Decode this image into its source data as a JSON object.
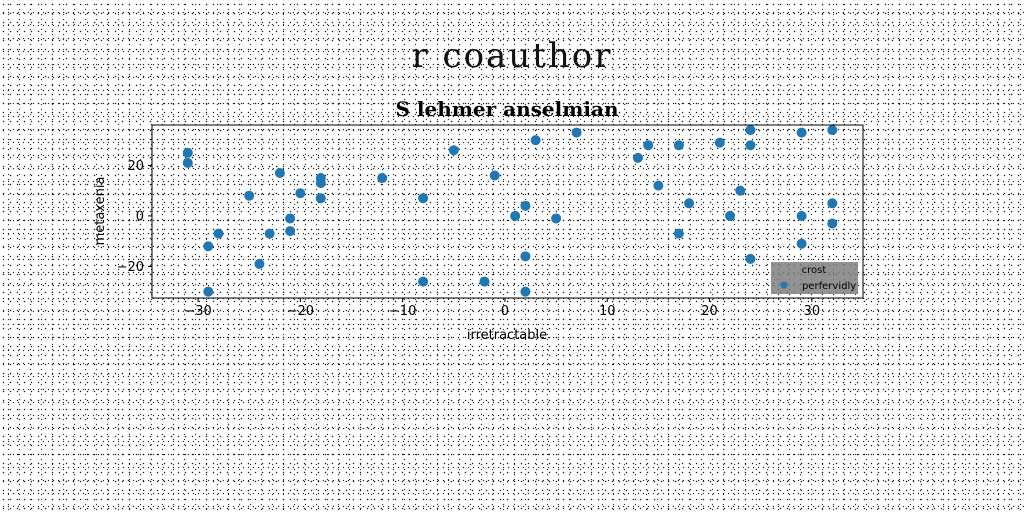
{
  "figure": {
    "title": "r coauthor"
  },
  "chart_data": {
    "type": "scatter",
    "title": "S lehmer anselmian",
    "xlabel": "irretractable",
    "ylabel": "metaxenia",
    "xlim": [
      -34.5,
      35
    ],
    "ylim": [
      -32.5,
      36
    ],
    "xticks": [
      -30,
      -20,
      -10,
      0,
      10,
      20,
      30
    ],
    "yticks": [
      -20,
      0,
      20
    ],
    "grid": false,
    "legend": {
      "placement": "lower-right",
      "title": "crost",
      "entries": [
        {
          "label": "perfervidly",
          "color": "#1f77b4"
        }
      ]
    },
    "series": [
      {
        "name": "perfervidly",
        "color": "#1f77b4",
        "x": [
          -31,
          -31,
          -29,
          -29,
          -28,
          -25,
          -24,
          -23,
          -22,
          -21,
          -21,
          -20,
          -18,
          -18,
          -18,
          -12,
          -8,
          -8,
          -5,
          -2,
          -1,
          1,
          2,
          2,
          2,
          3,
          5,
          7,
          13,
          14,
          15,
          17,
          17,
          18,
          21,
          22,
          23,
          24,
          24,
          24,
          29,
          29,
          29,
          32,
          32,
          32
        ],
        "y": [
          25,
          21,
          -12,
          -30,
          -7,
          8,
          -19,
          -7,
          17,
          -1,
          -6,
          9,
          15,
          13,
          7,
          15,
          7,
          -26,
          26,
          -26,
          16,
          0,
          4,
          -16,
          -30,
          30,
          -1,
          33,
          23,
          28,
          12,
          28,
          -7,
          5,
          29,
          0,
          10,
          34,
          28,
          -17,
          33,
          0,
          -11,
          34,
          5,
          -3
        ]
      }
    ]
  }
}
